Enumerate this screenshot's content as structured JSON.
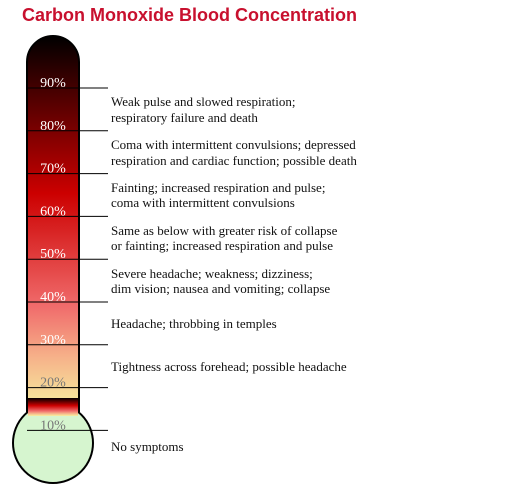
{
  "title": "Carbon Monoxide Blood Concentration",
  "colors": {
    "title": "#c8102e",
    "tube_top": "#000000",
    "tube_mid": "#cc0000",
    "tube_low": "#f06b6b",
    "tube_warm": "#f6b38a",
    "tube_yellow": "#f7f2a0",
    "bulb": "#d6f5cf"
  },
  "levels": [
    {
      "label": "90%",
      "value": 90
    },
    {
      "label": "80%",
      "value": 80
    },
    {
      "label": "70%",
      "value": 70
    },
    {
      "label": "60%",
      "value": 60
    },
    {
      "label": "50%",
      "value": 50
    },
    {
      "label": "40%",
      "value": 40
    },
    {
      "label": "30%",
      "value": 30
    },
    {
      "label": "20%",
      "value": 20
    },
    {
      "label": "10%",
      "value": 10
    }
  ],
  "descriptions": [
    {
      "lines": [
        "Weak pulse and slowed respiration;",
        "respiratory failure and death"
      ]
    },
    {
      "lines": [
        "Coma with intermittent convulsions; depressed",
        "respiration and cardiac function; possible death"
      ]
    },
    {
      "lines": [
        "Fainting; increased respiration and pulse;",
        "coma with intermittent convulsions"
      ]
    },
    {
      "lines": [
        "Same as below with greater risk of collapse",
        "or fainting; increased respiration and pulse"
      ]
    },
    {
      "lines": [
        "Severe headache; weakness; dizziness;",
        "dim vision; nausea and vomiting; collapse"
      ]
    },
    {
      "lines": [
        "Headache; throbbing in temples"
      ]
    },
    {
      "lines": [
        "Tightness across forehead; possible headache"
      ]
    },
    {
      "lines": [
        "No symptoms"
      ]
    }
  ]
}
